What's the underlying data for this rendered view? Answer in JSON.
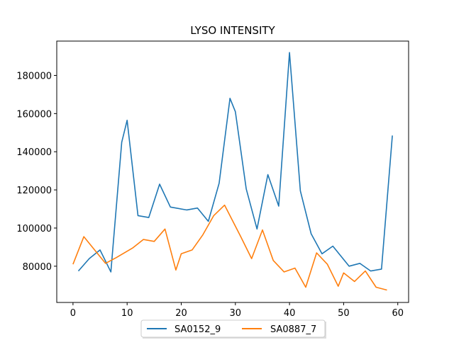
{
  "chart_data": {
    "type": "line",
    "title": "LYSO INTENSITY",
    "xlabel": "",
    "ylabel": "",
    "xlim": [
      -3,
      62
    ],
    "ylim": [
      61000,
      198000
    ],
    "x_ticks": [
      0,
      10,
      20,
      30,
      40,
      50,
      60
    ],
    "y_ticks": [
      80000,
      100000,
      120000,
      140000,
      160000,
      180000
    ],
    "grid": false,
    "legend": "bottom-center",
    "series": [
      {
        "name": "SA0152_9",
        "color": "#1f77b4",
        "x": [
          1,
          3,
          5,
          7,
          9,
          10,
          12,
          14,
          16,
          18,
          21,
          23,
          25,
          27,
          29,
          30,
          32,
          34,
          36,
          38,
          40,
          42,
          44,
          46,
          48,
          51,
          53,
          55,
          57,
          59
        ],
        "y": [
          77500,
          84000,
          88500,
          77000,
          145000,
          156500,
          106500,
          105500,
          123000,
          111000,
          109500,
          110500,
          103500,
          123500,
          168000,
          161000,
          120500,
          99500,
          128000,
          111500,
          192000,
          119500,
          97000,
          86500,
          90500,
          80000,
          81500,
          77500,
          78500,
          148500
        ]
      },
      {
        "name": "SA0887_7",
        "color": "#ff7f0e",
        "x": [
          0,
          2,
          4,
          6,
          8,
          11,
          13,
          15,
          17,
          19,
          20,
          22,
          24,
          26,
          28,
          31,
          33,
          35,
          37,
          39,
          41,
          43,
          45,
          47,
          49,
          50,
          52,
          54,
          56,
          58
        ],
        "y": [
          81000,
          95500,
          88500,
          81500,
          84500,
          89500,
          94000,
          93000,
          99500,
          78000,
          86500,
          88500,
          96500,
          106500,
          112000,
          95500,
          84000,
          99000,
          83000,
          77000,
          79000,
          69000,
          87000,
          81000,
          69500,
          76500,
          72000,
          77500,
          69000,
          67500
        ]
      }
    ]
  }
}
